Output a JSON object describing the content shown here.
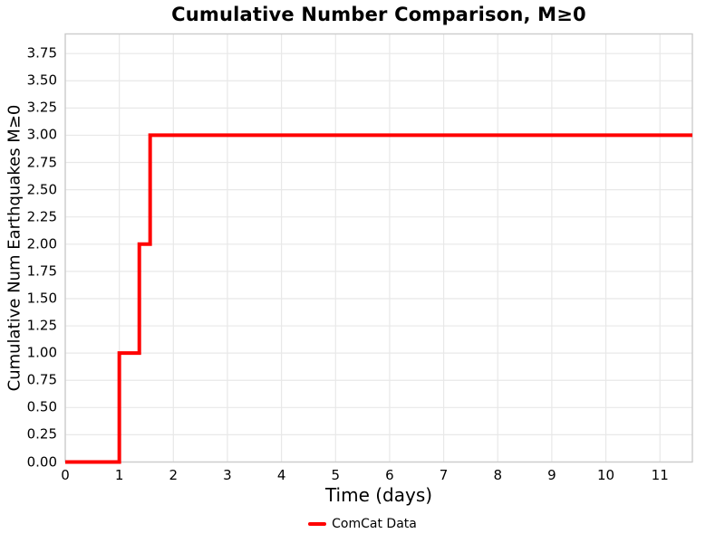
{
  "figure": {
    "background": "#ffffff"
  },
  "chart_data": {
    "type": "line",
    "title": "Cumulative Number Comparison, M≥0",
    "xlabel": "Time (days)",
    "ylabel": "Cumulative Num Earthquakes M≥0",
    "draw_style": "steps-post",
    "xlim": [
      0,
      11.6
    ],
    "ylim": [
      0,
      3.93
    ],
    "x_ticks": [
      0,
      1,
      2,
      3,
      4,
      5,
      6,
      7,
      8,
      9,
      10,
      11
    ],
    "y_ticks": [
      0.0,
      0.25,
      0.5,
      0.75,
      1.0,
      1.25,
      1.5,
      1.75,
      2.0,
      2.25,
      2.5,
      2.75,
      3.0,
      3.25,
      3.5,
      3.75
    ],
    "y_tick_decimals": 2,
    "grid": true,
    "grid_color": "#e8e8e8",
    "frame_color": "#cccccc",
    "legend_position": "bottom-center",
    "series": [
      {
        "name": "ComCat Data",
        "color": "#ff0000",
        "line_width": 4,
        "x": [
          0,
          1.0,
          1.37,
          1.57,
          11.6
        ],
        "y": [
          0,
          1,
          2,
          3,
          3
        ],
        "event_times_days": [
          1.0,
          1.37,
          1.57
        ],
        "final_count": 3
      }
    ]
  }
}
